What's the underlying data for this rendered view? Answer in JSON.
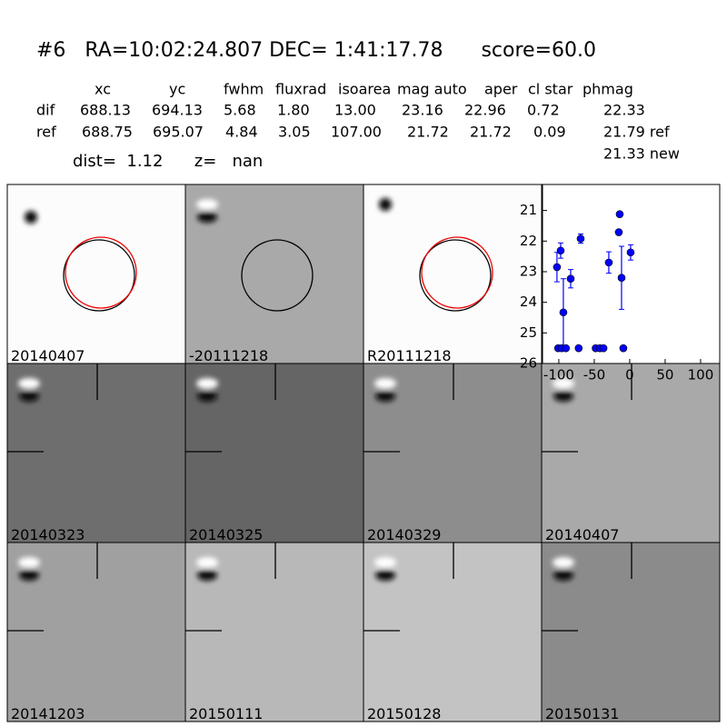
{
  "header": {
    "title": "#6   RA=10:02:24.807 DEC= 1:41:17.78      score=60.0"
  },
  "table": {
    "columns": [
      "xc",
      "yc",
      "fwhm",
      "fluxrad",
      "isoarea",
      "mag auto",
      "aper",
      "cl star",
      "phmag"
    ],
    "rows": [
      [
        "dif",
        "688.13",
        "694.13",
        "5.68",
        "1.80",
        "13.00",
        "23.16",
        "22.96",
        "0.72",
        "22.33"
      ],
      [
        "ref",
        "688.75",
        "695.07",
        "4.84",
        "3.05",
        "107.00",
        "21.72",
        "21.72",
        "0.09",
        "21.79 ref"
      ]
    ],
    "extra": "21.33 new"
  },
  "dist": "dist=  1.12      z=   nan",
  "panels": [
    "20140407",
    "-20111218",
    "R20111218",
    "20140323",
    "20140325",
    "20140329",
    "20140407",
    "20141203",
    "20150111",
    "20150128",
    "20150131"
  ],
  "chart_data": {
    "type": "scatter",
    "color": "#0000ff",
    "x": [
      -102.6,
      -97.4,
      -93.6,
      -83.3,
      -69.2,
      -29.5,
      -14.1,
      -15.4,
      -11.5,
      1.3,
      -101,
      -96,
      -90,
      -72,
      -48,
      -42,
      -37,
      -9
    ],
    "values": [
      22.85,
      22.31,
      24.33,
      23.23,
      21.92,
      22.7,
      21.12,
      21.71,
      23.2,
      22.37,
      25.5,
      25.5,
      25.5,
      25.5,
      25.5,
      25.5,
      25.5,
      25.5
    ],
    "errors": [
      0.48,
      0.25,
      1.1,
      0.3,
      0.15,
      0.35,
      null,
      null,
      1.03,
      0.25,
      null,
      null,
      null,
      null,
      null,
      null,
      null,
      null
    ],
    "xlim": [
      -123,
      127
    ],
    "ylim": [
      26,
      20.15
    ],
    "xticks": [
      -100,
      -50,
      0,
      50,
      100
    ],
    "yticks": [
      21,
      22,
      23,
      24,
      25,
      26
    ]
  }
}
